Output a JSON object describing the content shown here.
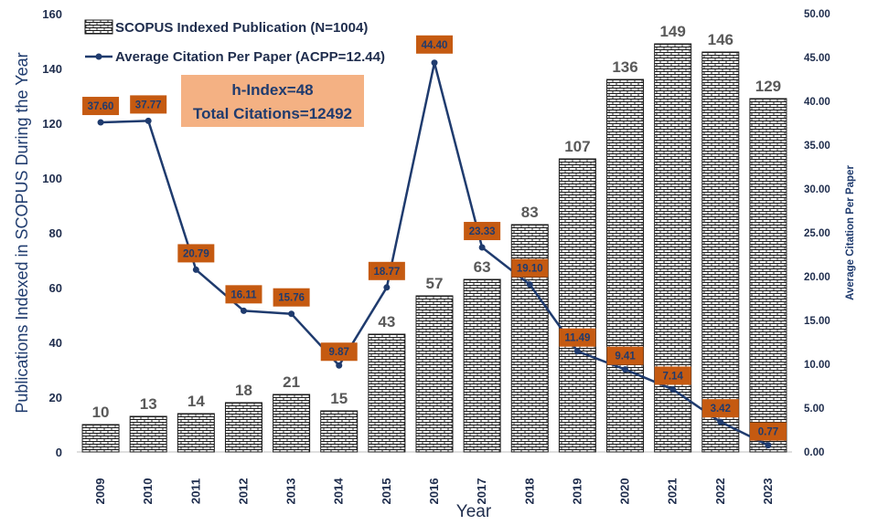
{
  "chart_data": {
    "type": "bar+line",
    "categories": [
      "2009",
      "2010",
      "2011",
      "2012",
      "2013",
      "2014",
      "2015",
      "2016",
      "2017",
      "2018",
      "2019",
      "2020",
      "2021",
      "2022",
      "2023"
    ],
    "series": [
      {
        "name": "SCOPUS Indexed Publication (N=1004)",
        "type": "bar",
        "axis": "left",
        "values": [
          10,
          13,
          14,
          18,
          21,
          15,
          43,
          57,
          63,
          83,
          107,
          136,
          149,
          146,
          129
        ]
      },
      {
        "name": "Average Citation Per Paper (ACPP=12.44)",
        "type": "line",
        "axis": "right",
        "values": [
          37.6,
          37.77,
          20.79,
          16.11,
          15.76,
          9.87,
          18.77,
          44.4,
          23.33,
          19.1,
          11.49,
          9.41,
          7.14,
          3.42,
          0.77
        ],
        "labels": [
          "37.60",
          "37.77",
          "20.79",
          "16.11",
          "15.76",
          "9.87",
          "18.77",
          "44.40",
          "23.33",
          "19.10",
          "11.49",
          "9.41",
          "7.14",
          "3.42",
          "0.77"
        ]
      }
    ],
    "xlabel": "Year",
    "ylabel": "Publications Indexed in SCOPUS During the Year",
    "y2label": "Average Citation Per Paper",
    "ylim": [
      0,
      160
    ],
    "y_ticks": [
      "0",
      "20",
      "40",
      "60",
      "80",
      "100",
      "120",
      "140",
      "160"
    ],
    "y2lim": [
      0,
      50
    ],
    "y2_ticks": [
      "0.00",
      "5.00",
      "10.00",
      "15.00",
      "20.00",
      "25.00",
      "30.00",
      "35.00",
      "40.00",
      "45.00",
      "50.00"
    ],
    "legend_position": "top-left",
    "annotation": {
      "line1": "h-Index=48",
      "line2": "Total Citations=12492"
    },
    "colors": {
      "bar_fill": "#ffffff",
      "bar_pattern": "#1a1a1a",
      "line": "#1f3b6e",
      "point_label_bg": "#c55a11",
      "annotation_bg": "#f4b183",
      "axis_text": "#1f2d4d"
    }
  }
}
